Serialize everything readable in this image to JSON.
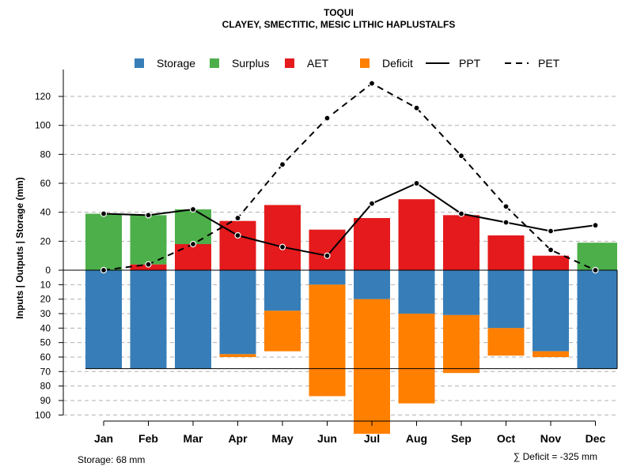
{
  "chart_data": {
    "type": "water-balance",
    "title": "TOQUI",
    "subtitle": "CLAYEY, SMECTITIC, MESIC LITHIC HAPLUSTALFS",
    "ylabel": "Inputs | Outputs | Storage    (mm)",
    "ylim": [
      -100,
      130
    ],
    "yticks_upper": [
      "0",
      "20",
      "40",
      "60",
      "80",
      "100",
      "120"
    ],
    "yticks_lower": [
      "10",
      "20",
      "30",
      "40",
      "50",
      "60",
      "70",
      "80",
      "90",
      "100"
    ],
    "categories": [
      "Jan",
      "Feb",
      "Mar",
      "Apr",
      "May",
      "Jun",
      "Jul",
      "Aug",
      "Sep",
      "Oct",
      "Nov",
      "Dec"
    ],
    "legend": [
      {
        "label": "Storage",
        "kind": "box",
        "color": "#377EB8"
      },
      {
        "label": "Surplus",
        "kind": "box",
        "color": "#4DAF4A"
      },
      {
        "label": "AET",
        "kind": "box",
        "color": "#E41A1C"
      },
      {
        "label": "Deficit",
        "kind": "box",
        "color": "#FF7F00"
      },
      {
        "label": "PPT",
        "kind": "solid",
        "color": "#000000"
      },
      {
        "label": "PET",
        "kind": "dashed",
        "color": "#000000"
      }
    ],
    "series": [
      {
        "name": "Surplus",
        "color": "#4DAF4A",
        "values": [
          39,
          34,
          24,
          0,
          0,
          0,
          0,
          0,
          0,
          0,
          0,
          19
        ]
      },
      {
        "name": "AET",
        "color": "#E41A1C",
        "values": [
          0,
          4,
          18,
          34,
          45,
          28,
          36,
          49,
          38,
          24,
          10,
          0
        ]
      },
      {
        "name": "Storage",
        "color": "#377EB8",
        "values": [
          68,
          68,
          68,
          58,
          28,
          10,
          20,
          30,
          31,
          40,
          56,
          68
        ]
      },
      {
        "name": "Deficit",
        "color": "#FF7F00",
        "values": [
          0,
          0,
          0,
          2,
          28,
          77,
          93,
          62,
          40,
          19,
          4,
          0
        ]
      },
      {
        "name": "PPT",
        "color": "#000000",
        "values": [
          39,
          38,
          42,
          24,
          16,
          10,
          46,
          60,
          39,
          33,
          27,
          31
        ]
      },
      {
        "name": "PET",
        "color": "#000000",
        "values": [
          0,
          4,
          18,
          36,
          73,
          105,
          129,
          112,
          79,
          44,
          14,
          0
        ]
      }
    ],
    "storage_capacity": 68,
    "footer_left": "Storage: 68 mm",
    "footer_right": "∑ Deficit = -325 mm"
  }
}
